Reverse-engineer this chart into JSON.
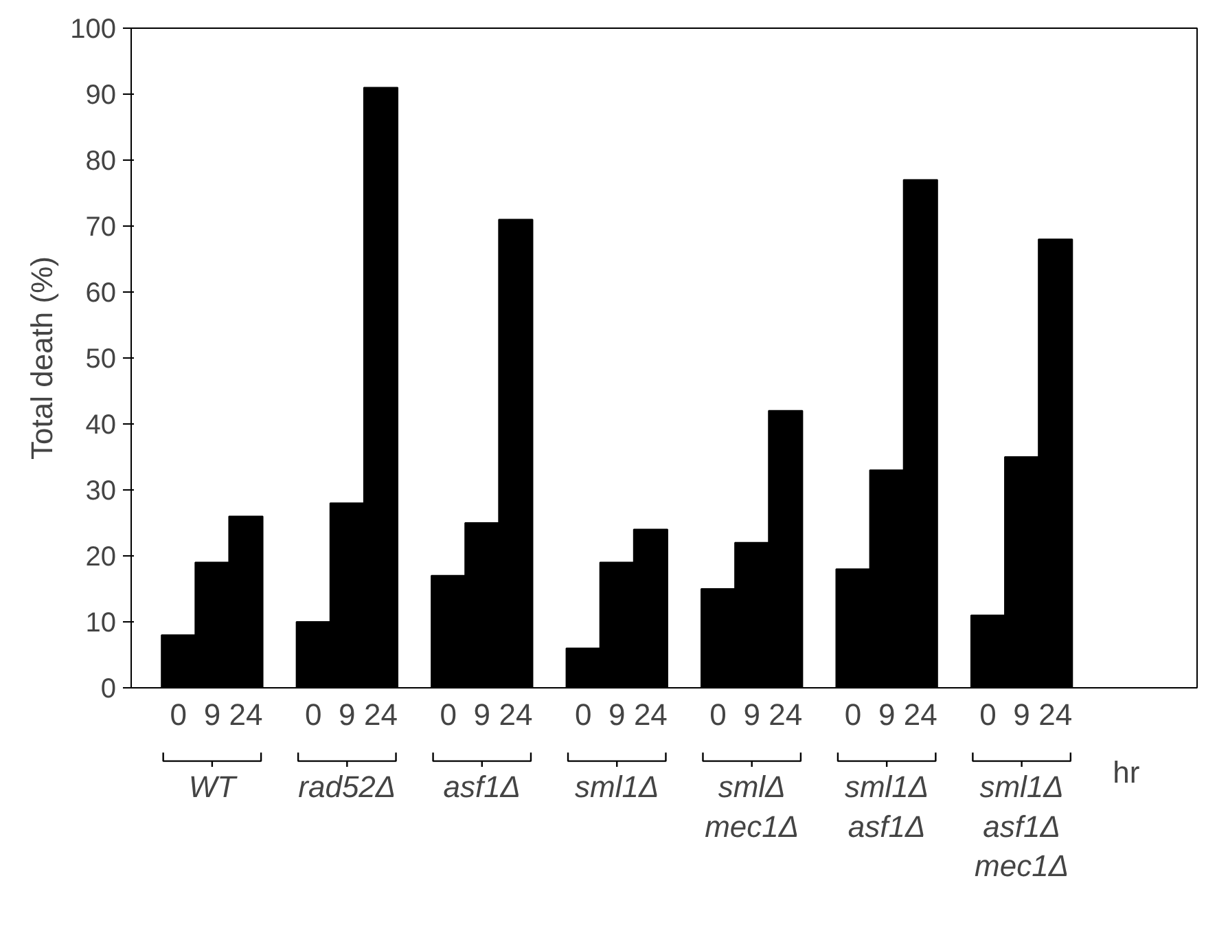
{
  "chart_data": {
    "type": "bar",
    "ylabel": "Total death (%)",
    "xlabel": "hr",
    "categories": [
      "0",
      "9",
      "24",
      "0",
      "9",
      "24",
      "0",
      "9",
      "24",
      "0",
      "9",
      "24",
      "0",
      "9",
      "24",
      "0",
      "9",
      "24",
      "0",
      "9",
      "24"
    ],
    "values": [
      8,
      19,
      26,
      10,
      28,
      91,
      17,
      25,
      71,
      6,
      19,
      24,
      15,
      22,
      42,
      18,
      33,
      77,
      11,
      35,
      68
    ],
    "color": "#000000",
    "ylim": [
      0,
      100
    ],
    "yticks": [
      0,
      10,
      20,
      30,
      40,
      50,
      60,
      70,
      80,
      90,
      100
    ],
    "grid": false,
    "annotations": [
      "WT",
      "rad52Δ",
      "asf1Δ",
      "sml1Δ",
      "smlΔ\nmec1Δ",
      "sml1Δ\nasf1Δ",
      "sml1Δ\nasf1Δ\nmec1Δ"
    ]
  }
}
